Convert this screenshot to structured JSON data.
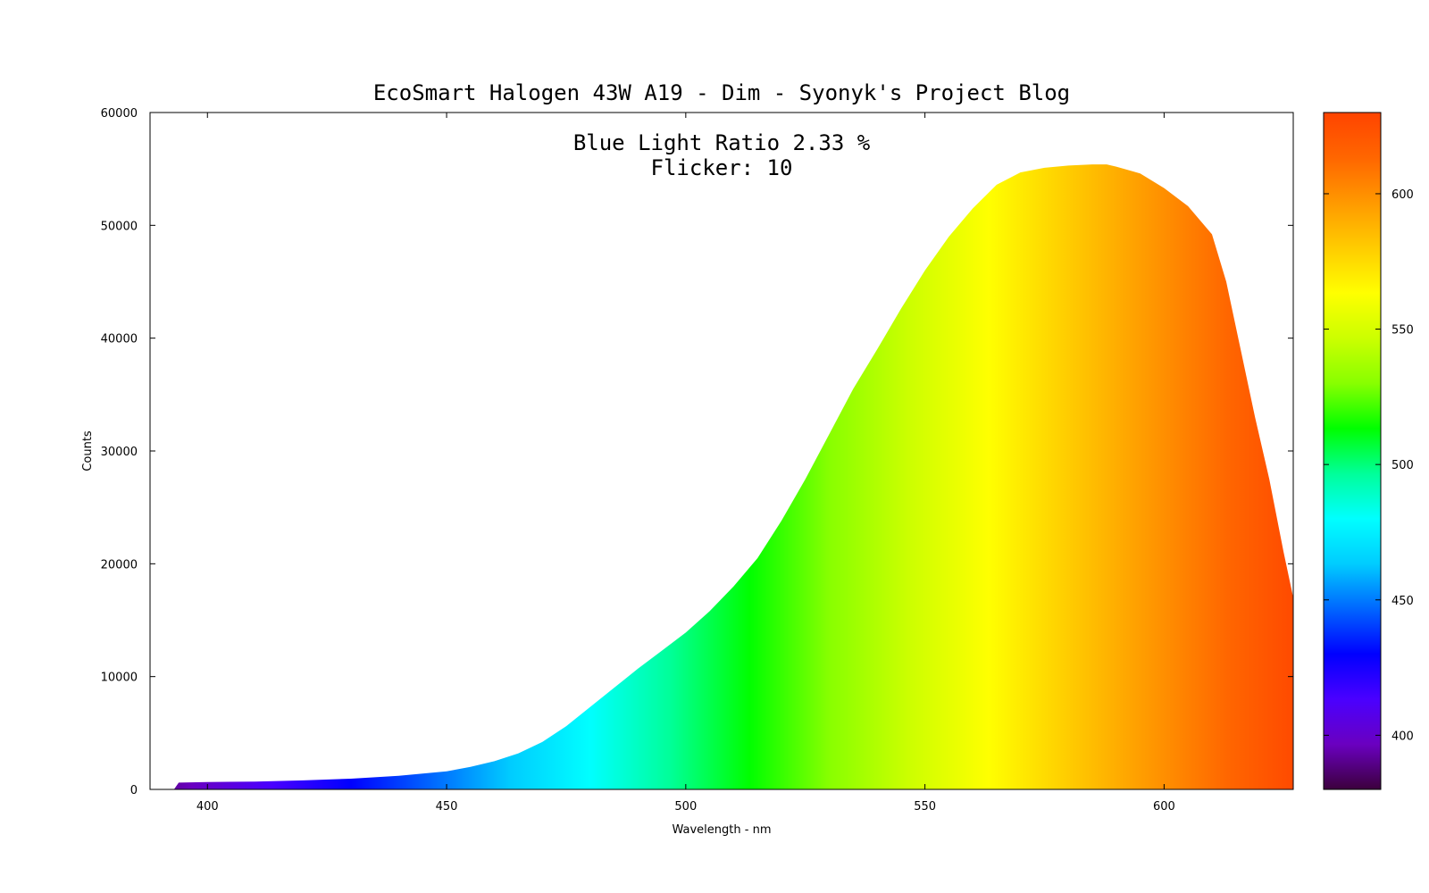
{
  "chart_data": {
    "type": "area",
    "title": "EcoSmart Halogen 43W A19 - Dim - Syonyk's Project Blog",
    "annotations": [
      "Blue Light Ratio 2.33 %",
      "Flicker: 10"
    ],
    "xlabel": "Wavelength - nm",
    "ylabel": "Counts",
    "xlim": [
      388,
      627
    ],
    "ylim": [
      0,
      60000
    ],
    "x_ticks": [
      400,
      450,
      500,
      550,
      600
    ],
    "y_ticks": [
      0,
      10000,
      20000,
      30000,
      40000,
      50000,
      60000
    ],
    "colorbar": {
      "range": [
        380,
        630
      ],
      "ticks": [
        400,
        450,
        500,
        550,
        600
      ],
      "palette": [
        "#3c003c",
        "#6a00c0",
        "#4a00ff",
        "#0000ff",
        "#0066ff",
        "#00ccff",
        "#00ffff",
        "#00ff99",
        "#00ff00",
        "#88ff00",
        "#ccff00",
        "#ffff00",
        "#ffcc00",
        "#ff9900",
        "#ff6600",
        "#ff4400"
      ]
    },
    "grid": false,
    "legend": "none",
    "x": [
      388,
      393,
      394,
      400,
      410,
      420,
      430,
      440,
      450,
      455,
      460,
      465,
      470,
      475,
      480,
      485,
      490,
      495,
      500,
      505,
      510,
      515,
      520,
      525,
      530,
      535,
      540,
      545,
      550,
      555,
      560,
      565,
      570,
      575,
      580,
      585,
      588,
      590,
      595,
      600,
      605,
      610,
      613,
      616,
      619,
      622,
      625,
      627
    ],
    "y": [
      0,
      0,
      600,
      650,
      700,
      800,
      950,
      1200,
      1600,
      2000,
      2500,
      3200,
      4200,
      5600,
      7300,
      9000,
      10700,
      12300,
      13900,
      15800,
      18000,
      20500,
      23800,
      27500,
      31500,
      35500,
      39000,
      42600,
      46000,
      49000,
      51500,
      53600,
      54700,
      55100,
      55300,
      55400,
      55400,
      55200,
      54600,
      53300,
      51700,
      49200,
      45000,
      39000,
      33000,
      27500,
      21000,
      17000
    ]
  }
}
